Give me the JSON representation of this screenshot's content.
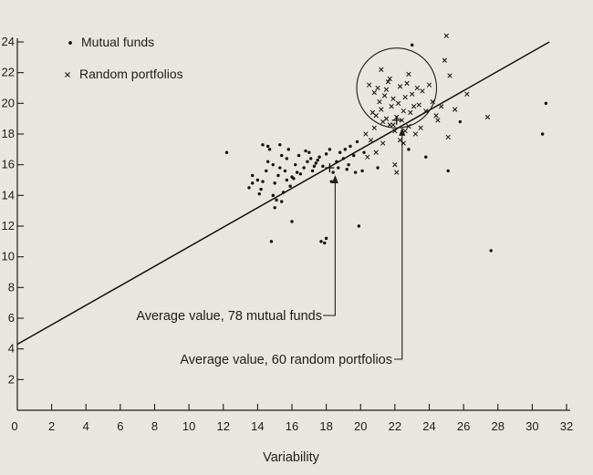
{
  "chart_data": {
    "type": "scatter",
    "title": "",
    "xlabel": "Variability",
    "ylabel": "",
    "xlim": [
      0,
      32
    ],
    "ylim": [
      0,
      24
    ],
    "xticks": [
      0,
      2,
      4,
      6,
      8,
      10,
      12,
      14,
      16,
      18,
      20,
      22,
      24,
      26,
      28,
      30,
      32
    ],
    "yticks": [
      2,
      4,
      6,
      8,
      10,
      12,
      14,
      16,
      18,
      20,
      22,
      24
    ],
    "grid": false,
    "legend_position": "top-left",
    "legend": [
      {
        "marker": "dot",
        "label": "Mutual funds"
      },
      {
        "marker": "cross",
        "label": "Random portfolios"
      }
    ],
    "series": [
      {
        "name": "Mutual funds",
        "marker": "dot",
        "points": [
          [
            12.2,
            16.8
          ],
          [
            13.5,
            14.5
          ],
          [
            13.7,
            14.8
          ],
          [
            14.0,
            15.0
          ],
          [
            14.2,
            14.4
          ],
          [
            14.3,
            14.9
          ],
          [
            14.5,
            15.6
          ],
          [
            14.6,
            16.2
          ],
          [
            14.7,
            17.0
          ],
          [
            14.9,
            14.0
          ],
          [
            15.0,
            14.8
          ],
          [
            15.1,
            13.7
          ],
          [
            15.2,
            15.3
          ],
          [
            15.3,
            15.8
          ],
          [
            15.4,
            16.6
          ],
          [
            15.5,
            14.2
          ],
          [
            15.6,
            15.6
          ],
          [
            15.7,
            16.4
          ],
          [
            15.8,
            17.0
          ],
          [
            15.9,
            14.6
          ],
          [
            16.0,
            15.2
          ],
          [
            16.2,
            16.0
          ],
          [
            16.4,
            16.6
          ],
          [
            16.5,
            15.4
          ],
          [
            16.7,
            15.8
          ],
          [
            16.9,
            16.2
          ],
          [
            17.0,
            16.8
          ],
          [
            17.2,
            15.6
          ],
          [
            17.4,
            16.1
          ],
          [
            17.6,
            16.5
          ],
          [
            17.8,
            15.9
          ],
          [
            18.0,
            16.7
          ],
          [
            18.2,
            17.0
          ],
          [
            18.4,
            15.5
          ],
          [
            18.6,
            16.2
          ],
          [
            18.8,
            16.8
          ],
          [
            19.0,
            16.4
          ],
          [
            19.2,
            15.7
          ],
          [
            19.4,
            17.2
          ],
          [
            19.6,
            16.6
          ],
          [
            15.0,
            13.2
          ],
          [
            15.4,
            13.6
          ],
          [
            14.3,
            17.3
          ],
          [
            14.6,
            17.2
          ],
          [
            15.3,
            17.3
          ],
          [
            16.0,
            12.3
          ],
          [
            17.7,
            11.0
          ],
          [
            17.9,
            10.9
          ],
          [
            18.0,
            11.2
          ],
          [
            19.9,
            12.0
          ],
          [
            14.8,
            11.0
          ],
          [
            19.7,
            15.5
          ],
          [
            18.3,
            14.9
          ],
          [
            14.1,
            14.1
          ],
          [
            16.1,
            15.1
          ],
          [
            16.8,
            16.9
          ],
          [
            17.5,
            16.3
          ],
          [
            19.3,
            16.0
          ],
          [
            13.7,
            15.3
          ],
          [
            14.9,
            16.0
          ],
          [
            15.7,
            15.0
          ],
          [
            16.3,
            15.5
          ],
          [
            17.1,
            16.4
          ],
          [
            17.3,
            15.9
          ],
          [
            18.7,
            15.8
          ],
          [
            19.1,
            17.0
          ],
          [
            20.1,
            15.6
          ],
          [
            21.0,
            15.8
          ],
          [
            22.8,
            17.0
          ],
          [
            23.8,
            16.5
          ],
          [
            25.1,
            15.6
          ],
          [
            25.8,
            18.8
          ],
          [
            27.6,
            10.4
          ],
          [
            30.8,
            20.0
          ],
          [
            30.6,
            18.0
          ],
          [
            23.0,
            23.8
          ],
          [
            20.2,
            16.8
          ],
          [
            19.8,
            17.5
          ]
        ]
      },
      {
        "name": "Random portfolios",
        "marker": "cross",
        "points": [
          [
            20.4,
            16.5
          ],
          [
            20.6,
            17.6
          ],
          [
            20.8,
            18.4
          ],
          [
            20.9,
            19.2
          ],
          [
            21.0,
            21.0
          ],
          [
            21.1,
            20.1
          ],
          [
            21.2,
            19.6
          ],
          [
            21.3,
            18.8
          ],
          [
            21.4,
            20.5
          ],
          [
            21.5,
            19.0
          ],
          [
            21.6,
            21.4
          ],
          [
            21.7,
            18.6
          ],
          [
            21.8,
            19.8
          ],
          [
            21.9,
            20.3
          ],
          [
            22.0,
            18.2
          ],
          [
            22.1,
            19.1
          ],
          [
            22.2,
            20.0
          ],
          [
            22.3,
            17.6
          ],
          [
            22.4,
            18.9
          ],
          [
            22.5,
            19.5
          ],
          [
            22.6,
            20.4
          ],
          [
            22.7,
            21.3
          ],
          [
            22.8,
            18.5
          ],
          [
            22.9,
            19.4
          ],
          [
            23.0,
            20.6
          ],
          [
            23.1,
            19.8
          ],
          [
            23.2,
            18.0
          ],
          [
            23.4,
            19.9
          ],
          [
            23.6,
            20.8
          ],
          [
            23.8,
            19.5
          ],
          [
            24.0,
            21.2
          ],
          [
            24.2,
            20.1
          ],
          [
            24.5,
            18.9
          ],
          [
            24.7,
            19.8
          ],
          [
            24.9,
            22.8
          ],
          [
            25.0,
            24.4
          ],
          [
            25.2,
            21.8
          ],
          [
            25.5,
            19.6
          ],
          [
            26.2,
            20.6
          ],
          [
            27.4,
            19.1
          ],
          [
            20.5,
            21.2
          ],
          [
            20.8,
            20.7
          ],
          [
            21.2,
            22.2
          ],
          [
            21.5,
            20.9
          ],
          [
            22.3,
            21.1
          ],
          [
            22.6,
            18.2
          ],
          [
            20.3,
            18.0
          ],
          [
            21.9,
            18.6
          ],
          [
            22.0,
            16.0
          ],
          [
            22.1,
            15.5
          ],
          [
            20.7,
            19.4
          ],
          [
            21.3,
            17.4
          ],
          [
            22.5,
            17.4
          ],
          [
            23.3,
            21.0
          ],
          [
            24.4,
            19.2
          ],
          [
            25.1,
            17.8
          ],
          [
            21.7,
            21.6
          ],
          [
            23.5,
            18.4
          ],
          [
            20.9,
            16.8
          ],
          [
            22.8,
            21.9
          ]
        ]
      }
    ],
    "regression_line": {
      "x": [
        0,
        31
      ],
      "y": [
        4.3,
        24.0
      ]
    },
    "circle": {
      "center": [
        22.1,
        21.0
      ],
      "radius_y": 2.6
    },
    "annotations": [
      {
        "label": "Average value, 78 mutual funds",
        "point": [
          18.2,
          15.8
        ]
      },
      {
        "label": "Average value, 60 random portfolios",
        "point": [
          22.1,
          18.9
        ]
      }
    ]
  }
}
